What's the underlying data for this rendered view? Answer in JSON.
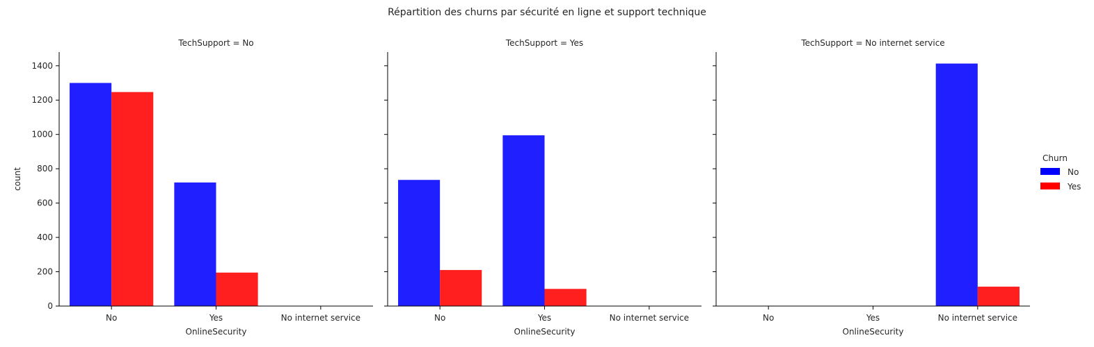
{
  "suptitle": "Répartition des churns par sécurité en ligne et support technique",
  "legend": {
    "title": "Churn",
    "entries": [
      {
        "label": "No",
        "color": "#0000ff"
      },
      {
        "label": "Yes",
        "color": "#ff0000"
      }
    ]
  },
  "chart_data": [
    {
      "type": "bar",
      "title": "TechSupport = No",
      "xlabel": "OnlineSecurity",
      "ylabel": "count",
      "categories": [
        "No",
        "Yes",
        "No internet service"
      ],
      "series": [
        {
          "name": "No",
          "values": [
            1300,
            720,
            0
          ]
        },
        {
          "name": "Yes",
          "values": [
            1247,
            195,
            0
          ]
        }
      ],
      "ylim": [
        0,
        1480
      ],
      "yticks": [
        0,
        200,
        400,
        600,
        800,
        1000,
        1200,
        1400
      ]
    },
    {
      "type": "bar",
      "title": "TechSupport = Yes",
      "xlabel": "OnlineSecurity",
      "ylabel": "",
      "categories": [
        "No",
        "Yes",
        "No internet service"
      ],
      "series": [
        {
          "name": "No",
          "values": [
            735,
            995,
            0
          ]
        },
        {
          "name": "Yes",
          "values": [
            210,
            100,
            0
          ]
        }
      ],
      "ylim": [
        0,
        1480
      ],
      "yticks": [
        0,
        200,
        400,
        600,
        800,
        1000,
        1200,
        1400
      ]
    },
    {
      "type": "bar",
      "title": "TechSupport = No internet service",
      "xlabel": "OnlineSecurity",
      "ylabel": "",
      "categories": [
        "No",
        "Yes",
        "No internet service"
      ],
      "series": [
        {
          "name": "No",
          "values": [
            0,
            0,
            1413
          ]
        },
        {
          "name": "Yes",
          "values": [
            0,
            0,
            113
          ]
        }
      ],
      "ylim": [
        0,
        1480
      ],
      "yticks": [
        0,
        200,
        400,
        600,
        800,
        1000,
        1200,
        1400
      ]
    }
  ]
}
